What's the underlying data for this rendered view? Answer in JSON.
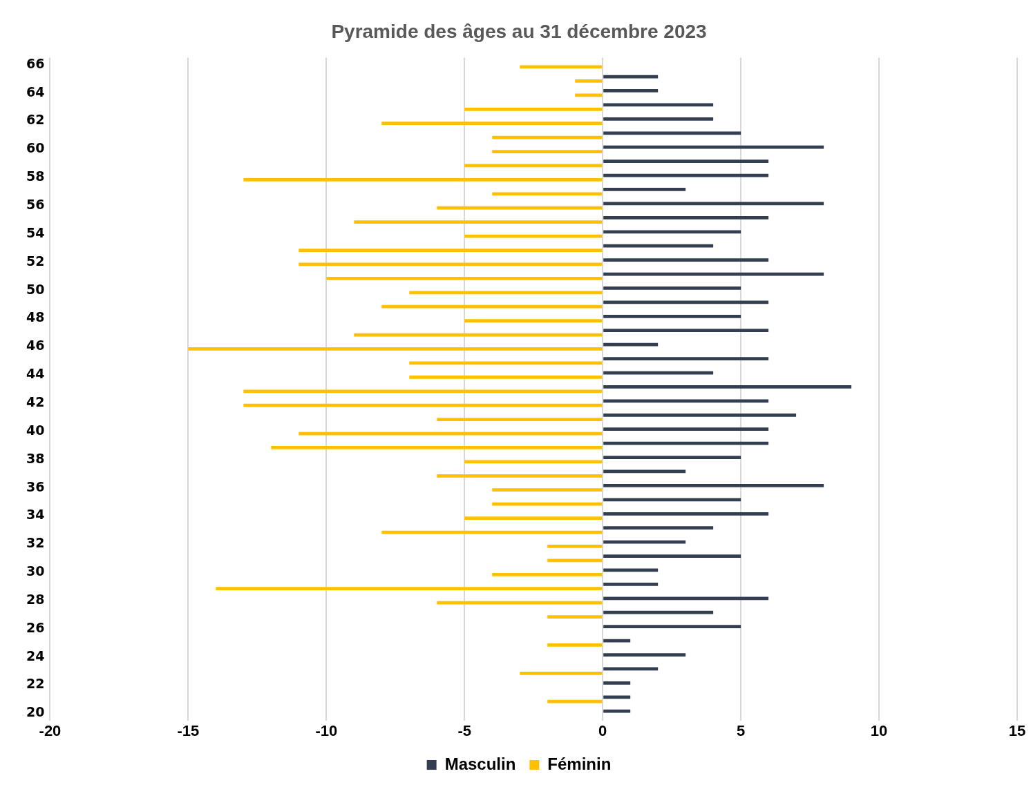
{
  "chart_data": {
    "type": "bar",
    "orientation": "horizontal",
    "title": "Pyramide des âges au 31 décembre 2023",
    "categories": [
      "66",
      null,
      "64",
      null,
      "62",
      null,
      "60",
      null,
      "58",
      null,
      "56",
      null,
      "54",
      null,
      "52",
      null,
      "50",
      null,
      "48",
      null,
      "46",
      null,
      "44",
      null,
      "42",
      null,
      "40",
      null,
      "38",
      null,
      "36",
      null,
      "34",
      null,
      "32",
      null,
      "30",
      null,
      "28",
      null,
      "26",
      null,
      "24",
      null,
      "22",
      null,
      "20"
    ],
    "series": [
      {
        "name": "Masculin",
        "color": "#333f50",
        "values": [
          0,
          2,
          2,
          4,
          4,
          5,
          8,
          6,
          6,
          3,
          8,
          6,
          5,
          4,
          6,
          8,
          5,
          6,
          5,
          6,
          2,
          6,
          4,
          9,
          6,
          7,
          6,
          6,
          5,
          3,
          8,
          5,
          6,
          4,
          3,
          5,
          2,
          2,
          6,
          4,
          5,
          1,
          3,
          2,
          1,
          1,
          1
        ]
      },
      {
        "name": "Féminin",
        "color": "#ffc000",
        "values": [
          -3,
          -1,
          -1,
          -5,
          -8,
          -4,
          -4,
          -5,
          -13,
          -4,
          -6,
          -9,
          -5,
          -11,
          -11,
          -10,
          -7,
          -8,
          -5,
          -9,
          -15,
          -7,
          -7,
          -13,
          -13,
          -6,
          -11,
          -12,
          -5,
          -6,
          -4,
          -4,
          -5,
          -8,
          -2,
          -2,
          -4,
          -14,
          -6,
          -2,
          0,
          -2,
          0,
          -3,
          0,
          -2,
          0
        ]
      }
    ],
    "xlim": [
      -20,
      15
    ],
    "xticks": [
      -20,
      -15,
      -10,
      -5,
      0,
      5,
      10,
      15
    ],
    "grid": "x",
    "legend": "bottom"
  }
}
